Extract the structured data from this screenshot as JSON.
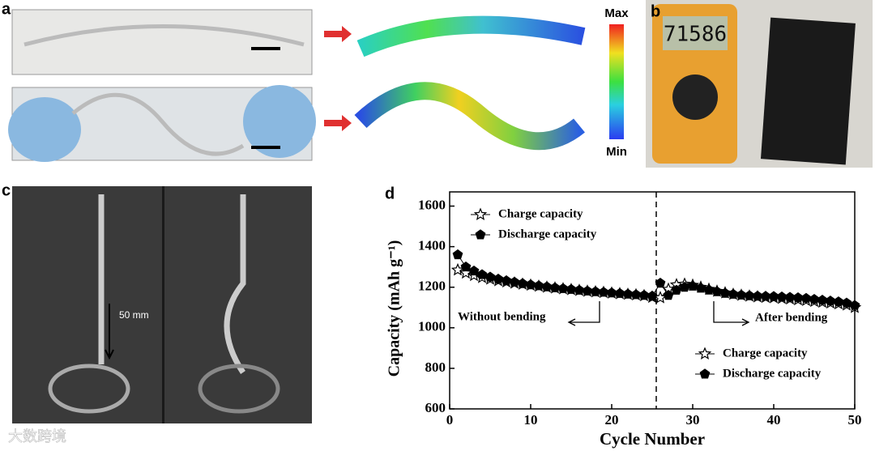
{
  "panels": {
    "a": {
      "label": "a",
      "colorbar_max": "Max",
      "colorbar_min": "Min"
    },
    "b": {
      "label": "b",
      "display": "71586"
    },
    "c": {
      "label": "c",
      "distance": "50 mm"
    },
    "d": {
      "label": "d"
    }
  },
  "watermark": "大数跨境",
  "chart_data": {
    "type": "line",
    "x_label": "Cycle Number",
    "y_label": "Capacity (mAh g⁻¹)",
    "xlim": [
      0,
      50
    ],
    "xticks": [
      0,
      10,
      20,
      30,
      40,
      50
    ],
    "ylim": [
      600,
      1670
    ],
    "yticks": [
      600,
      800,
      1000,
      1200,
      1400,
      1600
    ],
    "x": [
      1,
      2,
      3,
      4,
      5,
      6,
      7,
      8,
      9,
      10,
      11,
      12,
      13,
      14,
      15,
      16,
      17,
      18,
      19,
      20,
      21,
      22,
      23,
      24,
      25,
      26,
      27,
      28,
      29,
      30,
      31,
      32,
      33,
      34,
      35,
      36,
      37,
      38,
      39,
      40,
      41,
      42,
      43,
      44,
      45,
      46,
      47,
      48,
      49,
      50
    ],
    "series": [
      {
        "name": "Charge capacity",
        "color": "#000000",
        "marker": "star",
        "values": [
          1285,
          1270,
          1258,
          1248,
          1240,
          1232,
          1226,
          1220,
          1215,
          1210,
          1205,
          1200,
          1196,
          1192,
          1188,
          1184,
          1180,
          1177,
          1174,
          1171,
          1168,
          1165,
          1162,
          1158,
          1150,
          1148,
          1190,
          1212,
          1215,
          1210,
          1200,
          1190,
          1180,
          1172,
          1165,
          1160,
          1156,
          1152,
          1150,
          1148,
          1145,
          1142,
          1138,
          1135,
          1130,
          1126,
          1122,
          1118,
          1112,
          1100
        ]
      },
      {
        "name": "Discharge capacity",
        "color": "#000000",
        "marker": "pentagon",
        "values": [
          1360,
          1300,
          1280,
          1262,
          1250,
          1240,
          1232,
          1225,
          1218,
          1212,
          1207,
          1202,
          1197,
          1193,
          1189,
          1185,
          1181,
          1178,
          1175,
          1172,
          1169,
          1166,
          1163,
          1160,
          1156,
          1220,
          1160,
          1185,
          1200,
          1205,
          1195,
          1186,
          1178,
          1170,
          1165,
          1161,
          1158,
          1156,
          1155,
          1154,
          1152,
          1150,
          1148,
          1145,
          1140,
          1136,
          1132,
          1128,
          1122,
          1110
        ]
      }
    ],
    "divider_x": 25.5,
    "annotations": [
      "Without bending",
      "After bending"
    ]
  }
}
